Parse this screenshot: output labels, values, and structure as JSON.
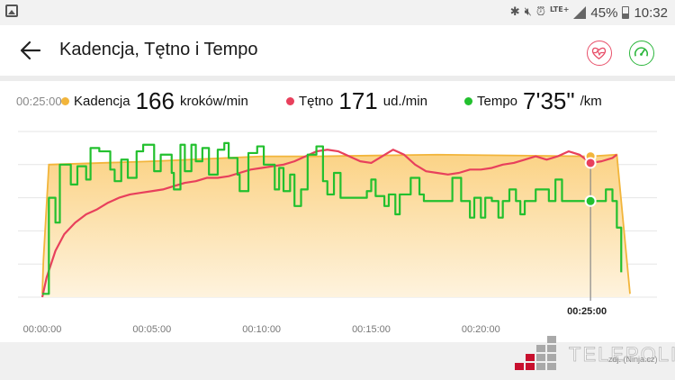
{
  "status_bar": {
    "lte_label": "LTE+",
    "battery_percent": "45%",
    "battery_level": 0.45,
    "time": "10:32",
    "icons": [
      "gallery-icon",
      "bluetooth-icon",
      "mute-icon",
      "alarm-icon",
      "signal-icon",
      "battery-icon"
    ]
  },
  "header": {
    "title": "Kadencja, Tętno i Tempo",
    "back_icon": "arrow-left-icon",
    "actions": [
      "heart-rate-icon",
      "speedometer-icon"
    ]
  },
  "legend": {
    "cursor_time": "00:25:00",
    "cadence": {
      "label": "Kadencja",
      "value": "166",
      "unit": "kroków/min",
      "color": "#f2b53b"
    },
    "heart_rate": {
      "label": "Tętno",
      "value": "171",
      "unit": "ud./min",
      "color": "#e8405c"
    },
    "pace": {
      "label": "Tempo",
      "value": "7'35\"",
      "unit": "/km",
      "color": "#22c02e"
    }
  },
  "chart_data": {
    "type": "line",
    "x_ticks": [
      "00:00:00",
      "00:05:00",
      "00:10:00",
      "00:15:00",
      "00:20:00"
    ],
    "x_max_min": 26.8,
    "cursor": {
      "x_min": 25,
      "label": "00:25:00"
    },
    "series": [
      {
        "name": "Kadencja",
        "kind": "area",
        "color": "#f2b53b",
        "fill": "#fde7bb",
        "points": [
          [
            0,
            0.02
          ],
          [
            0.05,
            0.22
          ],
          [
            0.3,
            0.8
          ],
          [
            5,
            0.82
          ],
          [
            10,
            0.85
          ],
          [
            12.5,
            0.85
          ],
          [
            18,
            0.86
          ],
          [
            25,
            0.85
          ],
          [
            26.2,
            0.86
          ],
          [
            26.8,
            0.02
          ]
        ]
      },
      {
        "name": "Tętno",
        "kind": "line",
        "color": "#e8405c",
        "points": [
          [
            0,
            0
          ],
          [
            0.2,
            0.12
          ],
          [
            0.6,
            0.28
          ],
          [
            1,
            0.38
          ],
          [
            1.5,
            0.45
          ],
          [
            2,
            0.5
          ],
          [
            2.5,
            0.53
          ],
          [
            3,
            0.57
          ],
          [
            3.5,
            0.6
          ],
          [
            4,
            0.62
          ],
          [
            4.5,
            0.63
          ],
          [
            5,
            0.64
          ],
          [
            5.5,
            0.65
          ],
          [
            6,
            0.67
          ],
          [
            6.5,
            0.69
          ],
          [
            7,
            0.7
          ],
          [
            7.5,
            0.72
          ],
          [
            8,
            0.72
          ],
          [
            8.5,
            0.73
          ],
          [
            9,
            0.75
          ],
          [
            9.5,
            0.77
          ],
          [
            10,
            0.78
          ],
          [
            10.5,
            0.79
          ],
          [
            11,
            0.8
          ],
          [
            11.5,
            0.82
          ],
          [
            12,
            0.85
          ],
          [
            12.5,
            0.88
          ],
          [
            13,
            0.89
          ],
          [
            13.5,
            0.88
          ],
          [
            14,
            0.85
          ],
          [
            14.5,
            0.82
          ],
          [
            15,
            0.81
          ],
          [
            15.5,
            0.85
          ],
          [
            16,
            0.89
          ],
          [
            16.5,
            0.86
          ],
          [
            17,
            0.8
          ],
          [
            17.5,
            0.76
          ],
          [
            18,
            0.75
          ],
          [
            18.5,
            0.74
          ],
          [
            19,
            0.75
          ],
          [
            19.5,
            0.77
          ],
          [
            20,
            0.77
          ],
          [
            20.5,
            0.78
          ],
          [
            21,
            0.8
          ],
          [
            21.5,
            0.81
          ],
          [
            22,
            0.83
          ],
          [
            22.5,
            0.85
          ],
          [
            23,
            0.83
          ],
          [
            23.5,
            0.85
          ],
          [
            24,
            0.88
          ],
          [
            24.5,
            0.86
          ],
          [
            25,
            0.81
          ],
          [
            25.5,
            0.82
          ],
          [
            26,
            0.84
          ],
          [
            26.2,
            0.86
          ]
        ]
      },
      {
        "name": "Tempo",
        "kind": "step",
        "color": "#22c02e",
        "points": [
          [
            0,
            0.02
          ],
          [
            0.3,
            0.6
          ],
          [
            0.6,
            0.45
          ],
          [
            0.8,
            0.8
          ],
          [
            1.3,
            0.68
          ],
          [
            1.6,
            0.79
          ],
          [
            2,
            0.71
          ],
          [
            2.2,
            0.9
          ],
          [
            2.6,
            0.88
          ],
          [
            3.1,
            0.77
          ],
          [
            3.3,
            0.7
          ],
          [
            3.6,
            0.83
          ],
          [
            3.9,
            0.72
          ],
          [
            4.3,
            0.88
          ],
          [
            4.6,
            0.92
          ],
          [
            5.1,
            0.76
          ],
          [
            5.4,
            0.86
          ],
          [
            5.9,
            0.75
          ],
          [
            6,
            0.65
          ],
          [
            6.3,
            0.92
          ],
          [
            6.5,
            0.76
          ],
          [
            6.8,
            0.92
          ],
          [
            7,
            0.82
          ],
          [
            7.3,
            0.9
          ],
          [
            7.6,
            0.74
          ],
          [
            8,
            0.89
          ],
          [
            8.3,
            0.93
          ],
          [
            8.5,
            0.84
          ],
          [
            8.9,
            0.74
          ],
          [
            9,
            0.64
          ],
          [
            9.4,
            0.87
          ],
          [
            9.8,
            0.91
          ],
          [
            10.1,
            0.8
          ],
          [
            10.6,
            0.65
          ],
          [
            10.8,
            0.78
          ],
          [
            11,
            0.64
          ],
          [
            11.3,
            0.74
          ],
          [
            11.5,
            0.55
          ],
          [
            11.8,
            0.65
          ],
          [
            12.1,
            0.86
          ],
          [
            12.5,
            0.91
          ],
          [
            12.8,
            0.7
          ],
          [
            13,
            0.62
          ],
          [
            13.3,
            0.75
          ],
          [
            13.6,
            0.6
          ],
          [
            14.6,
            0.6
          ],
          [
            14.8,
            0.64
          ],
          [
            15,
            0.71
          ],
          [
            15.2,
            0.61
          ],
          [
            15.6,
            0.55
          ],
          [
            15.8,
            0.62
          ],
          [
            16.1,
            0.5
          ],
          [
            16.3,
            0.62
          ],
          [
            16.8,
            0.72
          ],
          [
            17.2,
            0.62
          ],
          [
            17.4,
            0.58
          ],
          [
            18.5,
            0.58
          ],
          [
            18.7,
            0.72
          ],
          [
            19.1,
            0.58
          ],
          [
            19.5,
            0.48
          ],
          [
            19.7,
            0.6
          ],
          [
            20,
            0.48
          ],
          [
            20.2,
            0.6
          ],
          [
            20.5,
            0.58
          ],
          [
            20.8,
            0.48
          ],
          [
            21,
            0.58
          ],
          [
            21.3,
            0.65
          ],
          [
            21.6,
            0.58
          ],
          [
            21.8,
            0.5
          ],
          [
            22,
            0.58
          ],
          [
            22.5,
            0.65
          ],
          [
            23.1,
            0.58
          ],
          [
            23.4,
            0.71
          ],
          [
            23.7,
            0.58
          ],
          [
            25.5,
            0.58
          ],
          [
            25.7,
            0.65
          ],
          [
            26,
            0.58
          ],
          [
            26.2,
            0.42
          ],
          [
            26.4,
            0.15
          ]
        ]
      }
    ],
    "legend_placement": "top",
    "grid": true
  },
  "watermark": {
    "brand": "TELEPOLIS",
    "sub": "zdj. (Ninja.cz)",
    "colors": [
      "#c8102e",
      "#a9a9a9"
    ]
  }
}
